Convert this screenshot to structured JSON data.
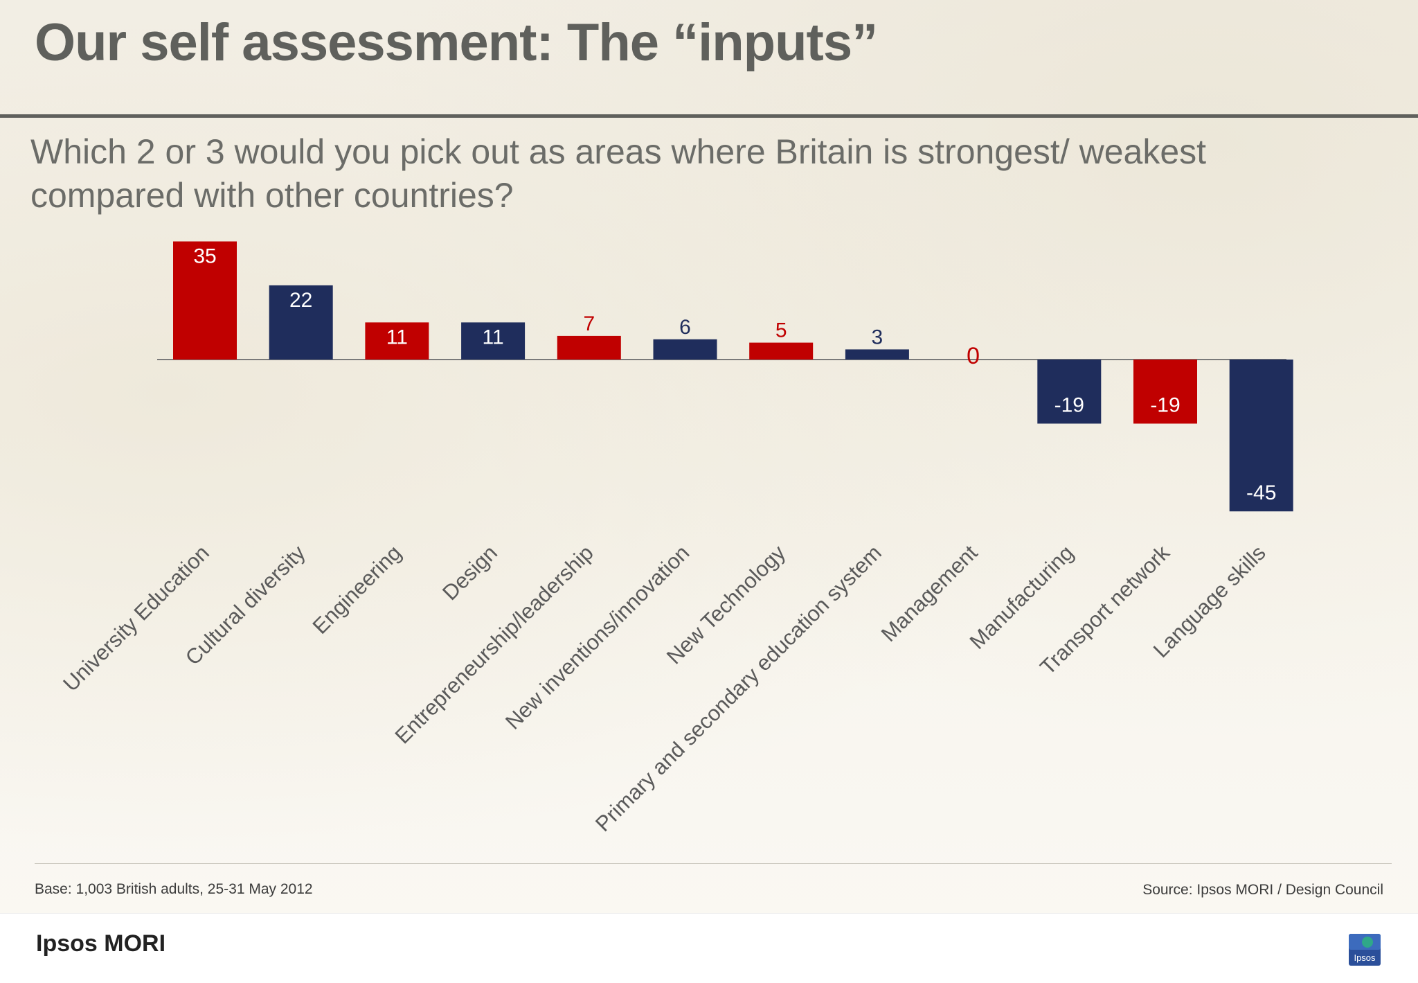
{
  "slide": {
    "title": "Our self assessment: The “inputs”",
    "subtitle": "Which 2 or 3 would you pick out as areas where Britain is strongest/ weakest compared with other countries?",
    "base_note": "Base: 1,003 British adults, 25-31 May 2012",
    "source_note": "Source: Ipsos MORI / Design Council",
    "brand_wordmark": "Ipsos MORI",
    "brand_logo_text": "Ipsos"
  },
  "colors": {
    "red": "#c00000",
    "navy": "#1f2d5c",
    "title_gray": "#5f605c",
    "label_gray": "#5a5a5a"
  },
  "chart_data": {
    "type": "bar",
    "title": "",
    "xlabel": "",
    "ylabel": "",
    "ylim": [
      -45,
      35
    ],
    "grid": false,
    "legend": "none",
    "categories": [
      "University Education",
      "Cultural diversity",
      "Engineering",
      "Design",
      "Entrepreneurship/leadership",
      "New inventions/innovation",
      "New Technology",
      "Primary and secondary education system",
      "Management",
      "Manufacturing",
      "Transport network",
      "Language skills"
    ],
    "values": [
      35,
      22,
      11,
      11,
      7,
      6,
      5,
      3,
      0,
      -19,
      -19,
      -45
    ],
    "bar_colors": [
      "red",
      "navy",
      "red",
      "navy",
      "red",
      "navy",
      "red",
      "navy",
      "red",
      "navy",
      "red",
      "navy"
    ]
  }
}
